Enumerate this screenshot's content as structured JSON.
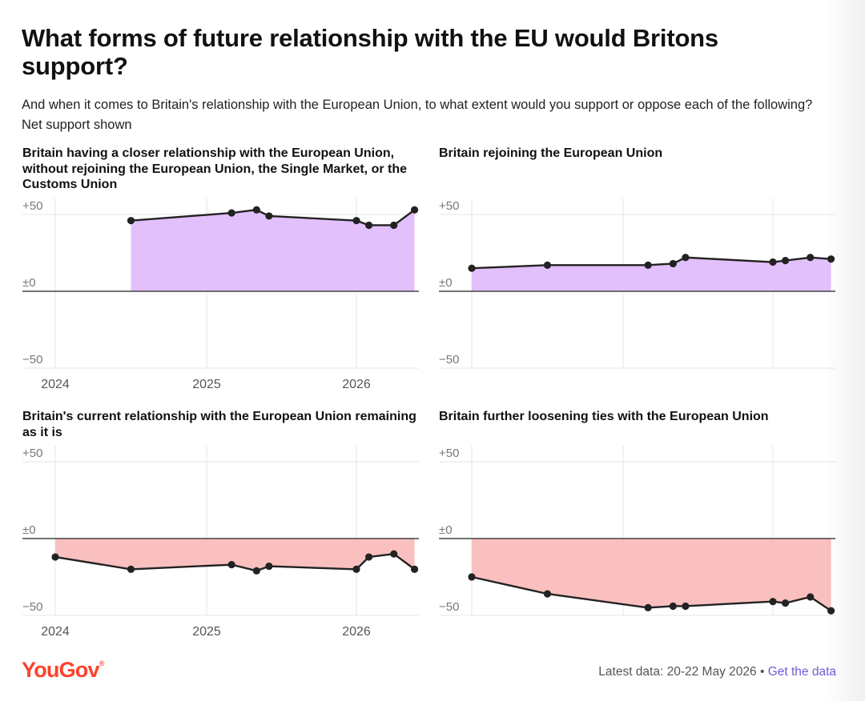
{
  "header": {
    "title": "What forms of future relationship with the EU would Britons support?",
    "subtitle": "And when it comes to Britain's relationship with the European Union, to what extent would you support or oppose each of the following? Net support shown"
  },
  "footer": {
    "logo": "YouGov",
    "latest": "Latest data: 20-22 May 2026",
    "separator": "•",
    "link": "Get the data"
  },
  "colors": {
    "positive_fill": "#e2c0fc",
    "negative_fill": "#f9c0bf",
    "line": "#222222"
  },
  "chart_data": [
    {
      "type": "area",
      "title": "Britain having a closer relationship with the European Union, without rejoining the European Union, the Single Market, or the Customs Union",
      "ylim": [
        -50,
        50
      ],
      "yticks": [
        "+50",
        "±0",
        "−50"
      ],
      "xticks": [
        "2024",
        "2025",
        "2026"
      ],
      "fill_color": "#e2c0fc",
      "points": [
        {
          "x": "2024-07",
          "y": 46
        },
        {
          "x": "2025-03",
          "y": 51
        },
        {
          "x": "2025-05",
          "y": 53
        },
        {
          "x": "2025-06",
          "y": 49
        },
        {
          "x": "2026-01",
          "y": 46
        },
        {
          "x": "2026-02",
          "y": 43
        },
        {
          "x": "2026-04",
          "y": 43
        },
        {
          "x": "2026-05-21",
          "y": 53
        }
      ]
    },
    {
      "type": "area",
      "title": "Britain rejoining the European Union",
      "ylim": [
        -50,
        50
      ],
      "yticks": [
        "+50",
        "±0",
        "−50"
      ],
      "fill_color": "#e2c0fc",
      "points": [
        {
          "x": "2024-01",
          "y": 15
        },
        {
          "x": "2024-07",
          "y": 17
        },
        {
          "x": "2025-03",
          "y": 17
        },
        {
          "x": "2025-05",
          "y": 18
        },
        {
          "x": "2025-06",
          "y": 22
        },
        {
          "x": "2026-01",
          "y": 19
        },
        {
          "x": "2026-02",
          "y": 20
        },
        {
          "x": "2026-04",
          "y": 22
        },
        {
          "x": "2026-05-21",
          "y": 21
        }
      ]
    },
    {
      "type": "area",
      "title": "Britain's current relationship with the European Union remaining as it is",
      "ylim": [
        -50,
        50
      ],
      "yticks": [
        "+50",
        "±0",
        "−50"
      ],
      "xticks": [
        "2024",
        "2025",
        "2026"
      ],
      "fill_color": "#f9c0bf",
      "points": [
        {
          "x": "2024-01",
          "y": -12
        },
        {
          "x": "2024-07",
          "y": -20
        },
        {
          "x": "2025-03",
          "y": -17
        },
        {
          "x": "2025-05",
          "y": -21
        },
        {
          "x": "2025-06",
          "y": -18
        },
        {
          "x": "2026-01",
          "y": -20
        },
        {
          "x": "2026-02",
          "y": -12
        },
        {
          "x": "2026-04",
          "y": -10
        },
        {
          "x": "2026-05-21",
          "y": -20
        }
      ]
    },
    {
      "type": "area",
      "title": "Britain further loosening ties with the European Union",
      "ylim": [
        -50,
        50
      ],
      "yticks": [
        "+50",
        "±0",
        "−50"
      ],
      "fill_color": "#f9c0bf",
      "points": [
        {
          "x": "2024-01",
          "y": -25
        },
        {
          "x": "2024-07",
          "y": -36
        },
        {
          "x": "2025-03",
          "y": -45
        },
        {
          "x": "2025-05",
          "y": -44
        },
        {
          "x": "2025-06",
          "y": -44
        },
        {
          "x": "2026-01",
          "y": -41
        },
        {
          "x": "2026-02",
          "y": -42
        },
        {
          "x": "2026-04",
          "y": -38
        },
        {
          "x": "2026-05-21",
          "y": -47
        }
      ]
    }
  ]
}
